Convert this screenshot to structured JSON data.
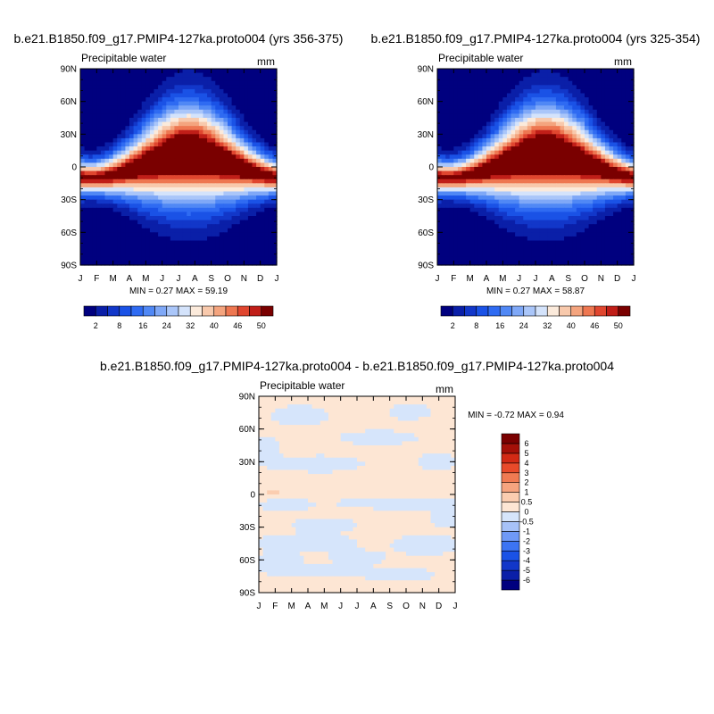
{
  "figure": {
    "background": "#ffffff"
  },
  "chart_data": [
    {
      "type": "heatmap",
      "title": "b.e21.B1850.f09_g17.PMIP4-127ka.proto004 (yrs 356-375)",
      "subtitle_left": "Precipitable water",
      "units": "mm",
      "stats": "MIN =   0.27 MAX =  59.19",
      "x_ticks": [
        "J",
        "F",
        "M",
        "A",
        "M",
        "J",
        "J",
        "A",
        "S",
        "O",
        "N",
        "D",
        "J"
      ],
      "y_ticks": [
        "90N",
        "60N",
        "30N",
        "0",
        "30S",
        "60S",
        "90S"
      ],
      "x_range": [
        1,
        13
      ],
      "y_range": [
        -90,
        90
      ],
      "field": {
        "kind": "climatology",
        "peak": 59.19,
        "floor": 0.27,
        "peak_month": 7.6,
        "peak_lat": 10
      },
      "colorbar": {
        "orientation": "horizontal",
        "levels": [
          2,
          5,
          8,
          12,
          16,
          20,
          24,
          28,
          32,
          36,
          40,
          43,
          46,
          48,
          50
        ],
        "labels": [
          "2",
          "8",
          "16",
          "24",
          "32",
          "40",
          "46",
          "50"
        ],
        "colors": [
          "#00007f",
          "#0a1fa8",
          "#1237c9",
          "#1a52e6",
          "#2f6bf2",
          "#5088f5",
          "#7fa8f7",
          "#aac6f9",
          "#d4e3fb",
          "#fbeadb",
          "#f8c9ac",
          "#f4a47e",
          "#ee7751",
          "#e0462f",
          "#c01e18",
          "#7a0000"
        ]
      }
    },
    {
      "type": "heatmap",
      "title": "b.e21.B1850.f09_g17.PMIP4-127ka.proto004 (yrs 325-354)",
      "subtitle_left": "Precipitable water",
      "units": "mm",
      "stats": "MIN =   0.27 MAX =  58.87",
      "x_ticks": [
        "J",
        "F",
        "M",
        "A",
        "M",
        "J",
        "J",
        "A",
        "S",
        "O",
        "N",
        "D",
        "J"
      ],
      "y_ticks": [
        "90N",
        "60N",
        "30N",
        "0",
        "30S",
        "60S",
        "90S"
      ],
      "x_range": [
        1,
        13
      ],
      "y_range": [
        -90,
        90
      ],
      "field": {
        "kind": "climatology",
        "peak": 58.87,
        "floor": 0.27,
        "peak_month": 7.6,
        "peak_lat": 10
      },
      "colorbar": {
        "orientation": "horizontal",
        "levels": [
          2,
          5,
          8,
          12,
          16,
          20,
          24,
          28,
          32,
          36,
          40,
          43,
          46,
          48,
          50
        ],
        "labels": [
          "2",
          "8",
          "16",
          "24",
          "32",
          "40",
          "46",
          "50"
        ],
        "colors": [
          "#00007f",
          "#0a1fa8",
          "#1237c9",
          "#1a52e6",
          "#2f6bf2",
          "#5088f5",
          "#7fa8f7",
          "#aac6f9",
          "#d4e3fb",
          "#fbeadb",
          "#f8c9ac",
          "#f4a47e",
          "#ee7751",
          "#e0462f",
          "#c01e18",
          "#7a0000"
        ]
      }
    },
    {
      "type": "heatmap",
      "title": "b.e21.B1850.f09_g17.PMIP4-127ka.proto004 - b.e21.B1850.f09_g17.PMIP4-127ka.proto004",
      "subtitle_left": "Precipitable water",
      "units": "mm",
      "stats": "MIN =  -0.72 MAX =   0.94",
      "x_ticks": [
        "J",
        "F",
        "M",
        "A",
        "M",
        "J",
        "J",
        "A",
        "S",
        "O",
        "N",
        "D",
        "J"
      ],
      "y_ticks": [
        "90N",
        "60N",
        "30N",
        "0",
        "30S",
        "60S",
        "90S"
      ],
      "x_range": [
        1,
        13
      ],
      "y_range": [
        -90,
        90
      ],
      "field": {
        "kind": "difference",
        "negative_patches": [
          {
            "month": 3.5,
            "lat": 72,
            "rm": 1.6,
            "rl": 9
          },
          {
            "month": 10.2,
            "lat": 76,
            "rm": 1.2,
            "rl": 7
          },
          {
            "month": 8.3,
            "lat": 52,
            "rm": 2.2,
            "rl": 6
          },
          {
            "month": 4.8,
            "lat": 28,
            "rm": 2.4,
            "rl": 7
          },
          {
            "month": 11.9,
            "lat": 30,
            "rm": 1.0,
            "rl": 8
          },
          {
            "month": 2.6,
            "lat": -10,
            "rm": 1.4,
            "rl": 6
          },
          {
            "month": 9.3,
            "lat": -8,
            "rm": 3.4,
            "rl": 5
          },
          {
            "month": 5.0,
            "lat": -28,
            "rm": 1.8,
            "rl": 6
          },
          {
            "month": 3.8,
            "lat": -44,
            "rm": 3.0,
            "rl": 7
          },
          {
            "month": 11.2,
            "lat": -46,
            "rm": 1.8,
            "rl": 9
          },
          {
            "month": 7.0,
            "lat": -58,
            "rm": 1.6,
            "rl": 6
          },
          {
            "month": 2.2,
            "lat": -62,
            "rm": 1.4,
            "rl": 8
          },
          {
            "month": 4.5,
            "lat": -70,
            "rm": 3.0,
            "rl": 4
          },
          {
            "month": 9.6,
            "lat": -74,
            "rm": 2.0,
            "rl": 6
          },
          {
            "month": 1.4,
            "lat": 40,
            "rm": 0.8,
            "rl": 12
          },
          {
            "month": 12.5,
            "lat": -20,
            "rm": 0.9,
            "rl": 10
          }
        ],
        "positive_patches": [
          {
            "month": 1.9,
            "lat": 3,
            "rm": 0.5,
            "rl": 2.5
          },
          {
            "month": 7.6,
            "lat": 71,
            "rm": 0.3,
            "rl": 2
          }
        ]
      },
      "colorbar": {
        "orientation": "vertical",
        "levels": [
          "-6",
          "-5",
          "-4",
          "-3",
          "-2",
          "-1",
          "-0.5",
          "0",
          "0.5",
          "1",
          "2",
          "3",
          "4",
          "5",
          "6"
        ],
        "colors": [
          "#00007f",
          "#0a1fa8",
          "#1237c9",
          "#1a52e6",
          "#3c74f3",
          "#6f99f6",
          "#a7c2f8",
          "#d6e5fb",
          "#fde6d4",
          "#fbcdb0",
          "#f6a47f",
          "#f07a52",
          "#e84a2a",
          "#d22a15",
          "#a41008",
          "#7a0000"
        ]
      }
    }
  ]
}
